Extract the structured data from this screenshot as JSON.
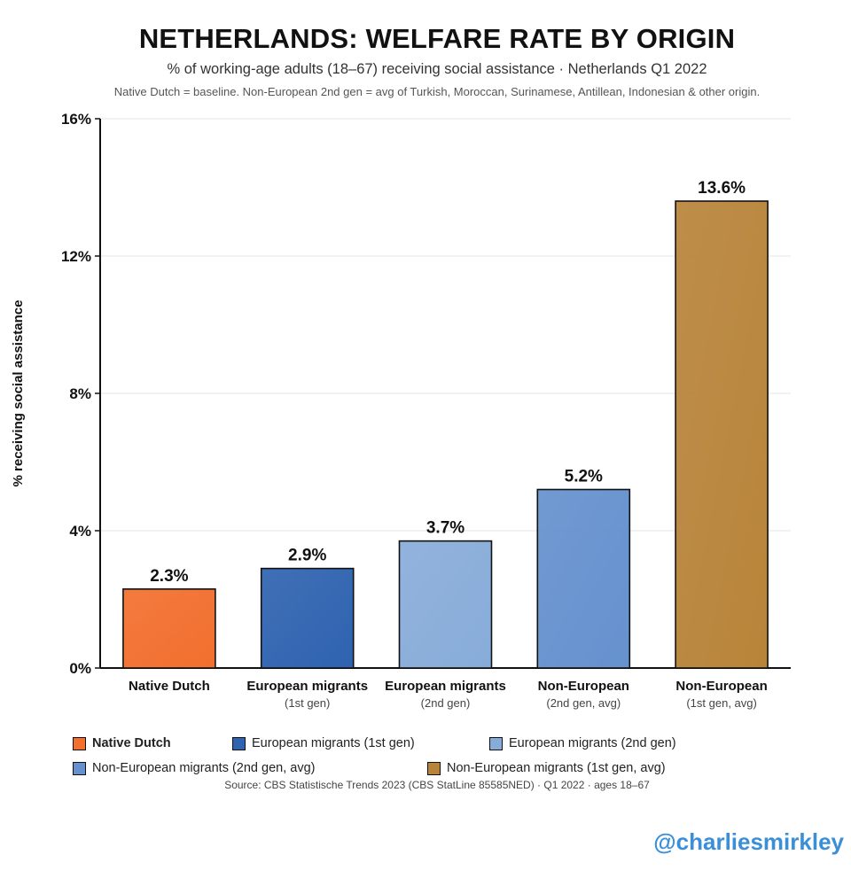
{
  "title": "NETHERLANDS: WELFARE RATE BY ORIGIN",
  "subtitle": "% of working-age adults (18–67) receiving social assistance · Netherlands Q1 2022",
  "note": "Native Dutch = baseline. Non-European 2nd gen = avg of Turkish, Moroccan, Surinamese, Antillean, Indonesian & other origin.",
  "source": "Source: CBS Statistische Trends 2023 (CBS StatLine 85585NED) · Q1 2022 · ages 18–67",
  "handle": "@charliesmirkley",
  "chart_data": {
    "type": "bar",
    "title": "NETHERLANDS: WELFARE RATE BY ORIGIN",
    "ylabel": "% receiving social assistance",
    "xlabel": "",
    "ylim": [
      0,
      16
    ],
    "yticks": [
      0,
      4,
      8,
      12,
      16
    ],
    "ytick_labels": [
      "0%",
      "4%",
      "8%",
      "12%",
      "16%"
    ],
    "grid": true,
    "categories": [
      {
        "name": "Native Dutch",
        "sub": ""
      },
      {
        "name": "European migrants",
        "sub": "(1st gen)"
      },
      {
        "name": "European migrants",
        "sub": "(2nd gen)"
      },
      {
        "name": "Non-European",
        "sub": "(2nd gen, avg)"
      },
      {
        "name": "Non-European",
        "sub": "(1st gen, avg)"
      }
    ],
    "values": [
      2.3,
      2.9,
      3.7,
      5.2,
      13.6
    ],
    "value_labels": [
      "2.3%",
      "2.9%",
      "3.7%",
      "5.2%",
      "13.6%"
    ],
    "colors": [
      "#f26f2e",
      "#2f63b0",
      "#88acd9",
      "#6591ce",
      "#b8843a"
    ],
    "legend": [
      {
        "label": "Native Dutch",
        "color": "#f26f2e",
        "bold": true
      },
      {
        "label": "European migrants (1st gen)",
        "color": "#2f63b0"
      },
      {
        "label": "European migrants (2nd gen)",
        "color": "#88acd9"
      },
      {
        "label": "Non-European migrants (2nd gen, avg)",
        "color": "#6591ce"
      },
      {
        "label": "Non-European migrants (1st gen, avg)",
        "color": "#b8843a"
      }
    ]
  }
}
